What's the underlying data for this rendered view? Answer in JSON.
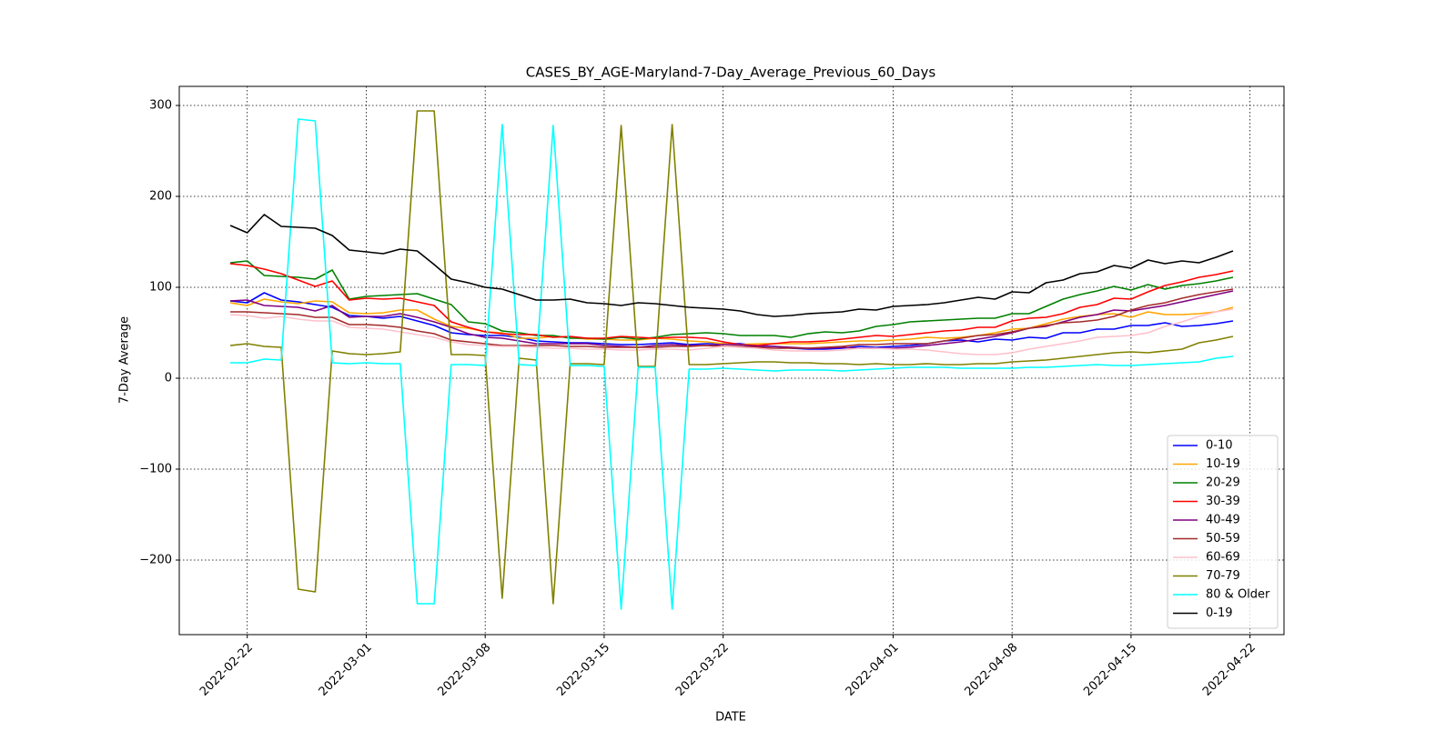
{
  "chart_data": {
    "type": "line",
    "title": "CASES_BY_AGE-Maryland-7-Day_Average_Previous_60_Days",
    "x_label": "DATE",
    "y_label": "7-Day Average",
    "x": [
      "2022-02-21",
      "2022-02-22",
      "2022-02-23",
      "2022-02-24",
      "2022-02-25",
      "2022-02-26",
      "2022-02-27",
      "2022-02-28",
      "2022-03-01",
      "2022-03-02",
      "2022-03-03",
      "2022-03-04",
      "2022-03-05",
      "2022-03-06",
      "2022-03-07",
      "2022-03-08",
      "2022-03-09",
      "2022-03-10",
      "2022-03-11",
      "2022-03-12",
      "2022-03-13",
      "2022-03-14",
      "2022-03-15",
      "2022-03-16",
      "2022-03-17",
      "2022-03-18",
      "2022-03-19",
      "2022-03-20",
      "2022-03-21",
      "2022-03-22",
      "2022-03-23",
      "2022-03-24",
      "2022-03-25",
      "2022-03-26",
      "2022-03-27",
      "2022-03-28",
      "2022-03-29",
      "2022-03-30",
      "2022-03-31",
      "2022-04-01",
      "2022-04-02",
      "2022-04-03",
      "2022-04-04",
      "2022-04-05",
      "2022-04-06",
      "2022-04-07",
      "2022-04-08",
      "2022-04-09",
      "2022-04-10",
      "2022-04-11",
      "2022-04-12",
      "2022-04-13",
      "2022-04-14",
      "2022-04-15",
      "2022-04-16",
      "2022-04-17",
      "2022-04-18",
      "2022-04-19",
      "2022-04-20",
      "2022-04-21"
    ],
    "xlim": [
      "2022-02-18",
      "2022-04-24"
    ],
    "xticks": [
      "2022-02-22",
      "2022-03-01",
      "2022-03-08",
      "2022-03-15",
      "2022-03-22",
      "2022-04-01",
      "2022-04-08",
      "2022-04-15",
      "2022-04-22"
    ],
    "ylim": [
      -282,
      321
    ],
    "yticks": [
      {
        "value": -200,
        "label": "−200"
      },
      {
        "value": -100,
        "label": "−100"
      },
      0,
      100,
      200,
      300
    ],
    "grid": true,
    "legend": "lower right",
    "series": [
      {
        "name": "0-10",
        "color": "blue",
        "values": [
          85,
          83,
          94,
          86,
          84,
          81,
          78,
          69,
          68,
          66,
          68,
          63,
          58,
          50,
          48,
          47,
          47,
          45,
          41,
          40,
          39,
          39,
          38,
          37,
          37,
          38,
          39,
          37,
          38,
          38,
          38,
          36,
          35,
          33,
          32,
          32,
          33,
          35,
          34,
          35,
          36,
          38,
          41,
          42,
          40,
          43,
          42,
          45,
          44,
          50,
          50,
          54,
          54,
          58,
          58,
          61,
          57,
          58,
          60,
          63
        ]
      },
      {
        "name": "10-19",
        "color": "orange",
        "values": [
          83,
          80,
          87,
          84,
          82,
          85,
          84,
          72,
          71,
          72,
          75,
          75,
          65,
          57,
          55,
          51,
          50,
          44,
          44,
          46,
          45,
          43,
          43,
          42,
          42,
          44,
          43,
          41,
          40,
          38,
          37,
          38,
          38,
          38,
          38,
          39,
          40,
          41,
          41,
          42,
          43,
          45,
          44,
          45,
          47,
          50,
          54,
          55,
          60,
          65,
          68,
          70,
          71,
          67,
          73,
          70,
          70,
          71,
          73,
          78
        ]
      },
      {
        "name": "20-29",
        "color": "green",
        "values": [
          127,
          129,
          113,
          112,
          111,
          109,
          119,
          87,
          90,
          91,
          92,
          93,
          87,
          81,
          62,
          60,
          52,
          50,
          47,
          47,
          44,
          44,
          43,
          45,
          43,
          45,
          48,
          49,
          50,
          49,
          47,
          47,
          47,
          45,
          49,
          51,
          50,
          52,
          57,
          59,
          62,
          63,
          64,
          65,
          66,
          66,
          71,
          71,
          79,
          87,
          92,
          96,
          101,
          97,
          103,
          98,
          102,
          104,
          107,
          111
        ]
      },
      {
        "name": "30-39",
        "color": "red",
        "values": [
          126,
          124,
          120,
          115,
          108,
          101,
          107,
          86,
          88,
          87,
          88,
          84,
          80,
          62,
          56,
          51,
          49,
          48,
          48,
          45,
          46,
          44,
          44,
          46,
          45,
          44,
          45,
          45,
          44,
          40,
          37,
          36,
          38,
          40,
          40,
          41,
          43,
          45,
          47,
          46,
          48,
          50,
          52,
          53,
          56,
          56,
          63,
          66,
          67,
          71,
          78,
          81,
          88,
          87,
          95,
          102,
          106,
          111,
          114,
          118
        ]
      },
      {
        "name": "40-49",
        "color": "purple",
        "values": [
          85,
          86,
          80,
          79,
          78,
          74,
          80,
          67,
          68,
          68,
          71,
          67,
          62,
          56,
          49,
          45,
          44,
          41,
          38,
          38,
          38,
          38,
          36,
          35,
          34,
          36,
          37,
          36,
          36,
          37,
          37,
          35,
          35,
          34,
          33,
          33,
          34,
          33,
          33,
          33,
          34,
          36,
          38,
          40,
          43,
          46,
          50,
          55,
          57,
          62,
          67,
          70,
          75,
          74,
          77,
          80,
          84,
          88,
          92,
          96
        ]
      },
      {
        "name": "50-59",
        "color": "#a52a2a",
        "values": [
          73,
          73,
          72,
          71,
          70,
          67,
          67,
          59,
          59,
          58,
          56,
          52,
          49,
          42,
          40,
          38,
          36,
          36,
          36,
          36,
          35,
          35,
          34,
          34,
          34,
          34,
          35,
          35,
          36,
          35,
          35,
          34,
          33,
          33,
          33,
          34,
          35,
          37,
          37,
          38,
          38,
          38,
          41,
          44,
          47,
          48,
          51,
          55,
          58,
          61,
          62,
          64,
          68,
          75,
          80,
          83,
          88,
          92,
          95,
          98
        ]
      },
      {
        "name": "60-69",
        "color": "pink",
        "values": [
          70,
          69,
          66,
          68,
          65,
          63,
          63,
          56,
          55,
          54,
          51,
          48,
          45,
          40,
          37,
          36,
          35,
          35,
          34,
          33,
          33,
          32,
          32,
          31,
          31,
          32,
          32,
          31,
          33,
          35,
          34,
          33,
          31,
          30,
          30,
          30,
          31,
          33,
          33,
          32,
          32,
          31,
          29,
          27,
          26,
          26,
          28,
          32,
          35,
          38,
          41,
          45,
          46,
          47,
          50,
          57,
          62,
          68,
          73,
          76
        ]
      },
      {
        "name": "70-79",
        "color": "olive",
        "values": [
          36,
          38,
          35,
          34,
          -232,
          -235,
          30,
          27,
          26,
          27,
          29,
          294,
          294,
          26,
          26,
          25,
          -242,
          22,
          20,
          -248,
          16,
          16,
          15,
          278,
          13,
          13,
          279,
          15,
          15,
          16,
          17,
          18,
          18,
          17,
          17,
          16,
          16,
          15,
          16,
          15,
          15,
          16,
          15,
          15,
          16,
          16,
          18,
          19,
          20,
          22,
          24,
          26,
          28,
          29,
          28,
          30,
          32,
          39,
          42,
          46
        ]
      },
      {
        "name": "80 & Older",
        "color": "cyan",
        "values": [
          17,
          17,
          21,
          20,
          285,
          283,
          17,
          16,
          17,
          16,
          16,
          -248,
          -248,
          15,
          15,
          14,
          279,
          15,
          14,
          278,
          14,
          14,
          13,
          -254,
          12,
          12,
          -254,
          10,
          10,
          11,
          10,
          9,
          8,
          9,
          9,
          9,
          8,
          9,
          10,
          11,
          12,
          12,
          12,
          11,
          11,
          11,
          11,
          12,
          12,
          13,
          14,
          15,
          14,
          14,
          15,
          16,
          17,
          18,
          22,
          24
        ]
      },
      {
        "name": "0-19",
        "color": "black",
        "values": [
          168,
          160,
          180,
          167,
          166,
          165,
          157,
          141,
          139,
          137,
          142,
          140,
          125,
          109,
          105,
          100,
          98,
          92,
          86,
          86,
          87,
          83,
          82,
          80,
          83,
          82,
          80,
          78,
          77,
          76,
          74,
          70,
          68,
          69,
          71,
          72,
          73,
          76,
          75,
          79,
          80,
          81,
          83,
          86,
          89,
          87,
          95,
          94,
          105,
          108,
          115,
          117,
          124,
          121,
          130,
          126,
          129,
          127,
          133,
          140
        ]
      }
    ]
  }
}
